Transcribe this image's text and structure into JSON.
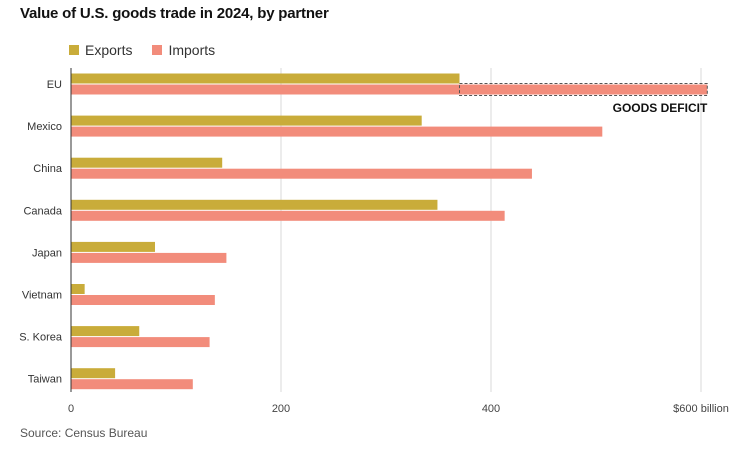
{
  "title": "Value of U.S. goods trade in 2024, by partner",
  "source": "Source: Census Bureau",
  "colors": {
    "exports": "#c9ac3a",
    "imports": "#f28c7b",
    "grid": "#d9d9d9",
    "axis": "#333333"
  },
  "chart_data": {
    "type": "bar",
    "orientation": "horizontal",
    "categories": [
      "EU",
      "Mexico",
      "China",
      "Canada",
      "Japan",
      "Vietnam",
      "S. Korea",
      "Taiwan"
    ],
    "series": [
      {
        "name": "Exports",
        "values": [
          370,
          334,
          144,
          349,
          80,
          13,
          65,
          42
        ]
      },
      {
        "name": "Imports",
        "values": [
          606,
          506,
          439,
          413,
          148,
          137,
          132,
          116
        ]
      }
    ],
    "xlim": [
      0,
      610
    ],
    "xticks": [
      0,
      200,
      400,
      600
    ],
    "xtick_labels": [
      "0",
      "200",
      "400",
      "$600 billion"
    ],
    "grid": true,
    "legend": "top-left",
    "annotation": {
      "label": "GOODS DEFICIT",
      "category": "EU"
    }
  }
}
